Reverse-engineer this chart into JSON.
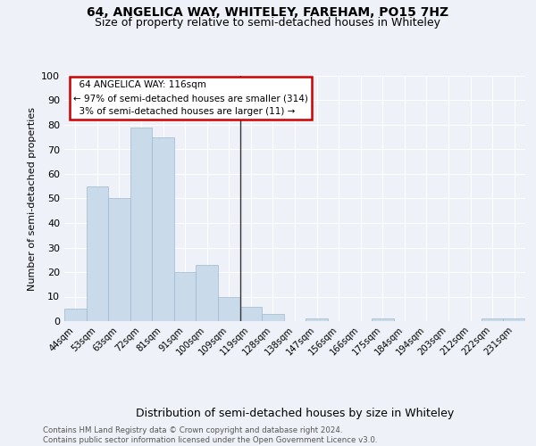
{
  "title": "64, ANGELICA WAY, WHITELEY, FAREHAM, PO15 7HZ",
  "subtitle": "Size of property relative to semi-detached houses in Whiteley",
  "xlabel": "Distribution of semi-detached houses by size in Whiteley",
  "ylabel": "Number of semi-detached properties",
  "categories": [
    "44sqm",
    "53sqm",
    "63sqm",
    "72sqm",
    "81sqm",
    "91sqm",
    "100sqm",
    "109sqm",
    "119sqm",
    "128sqm",
    "138sqm",
    "147sqm",
    "156sqm",
    "166sqm",
    "175sqm",
    "184sqm",
    "194sqm",
    "203sqm",
    "212sqm",
    "222sqm",
    "231sqm"
  ],
  "values": [
    5,
    55,
    50,
    79,
    75,
    20,
    23,
    10,
    6,
    3,
    0,
    1,
    0,
    0,
    1,
    0,
    0,
    0,
    0,
    1,
    1
  ],
  "bar_color": "#c9daea",
  "bar_edge_color": "#a0b8d0",
  "vline_index": 8,
  "marker_label": "64 ANGELICA WAY: 116sqm",
  "smaller_pct": "97%",
  "smaller_n": 314,
  "larger_pct": "3%",
  "larger_n": 11,
  "vline_color": "#333333",
  "annotation_box_color": "#cc0000",
  "ylim": [
    0,
    100
  ],
  "yticks": [
    0,
    10,
    20,
    30,
    40,
    50,
    60,
    70,
    80,
    90,
    100
  ],
  "background_color": "#eef2f8",
  "plot_background": "#eef2f8",
  "footer": "Contains HM Land Registry data © Crown copyright and database right 2024.\nContains public sector information licensed under the Open Government Licence v3.0.",
  "grid_color": "#ffffff",
  "title_fontsize": 10,
  "subtitle_fontsize": 9
}
